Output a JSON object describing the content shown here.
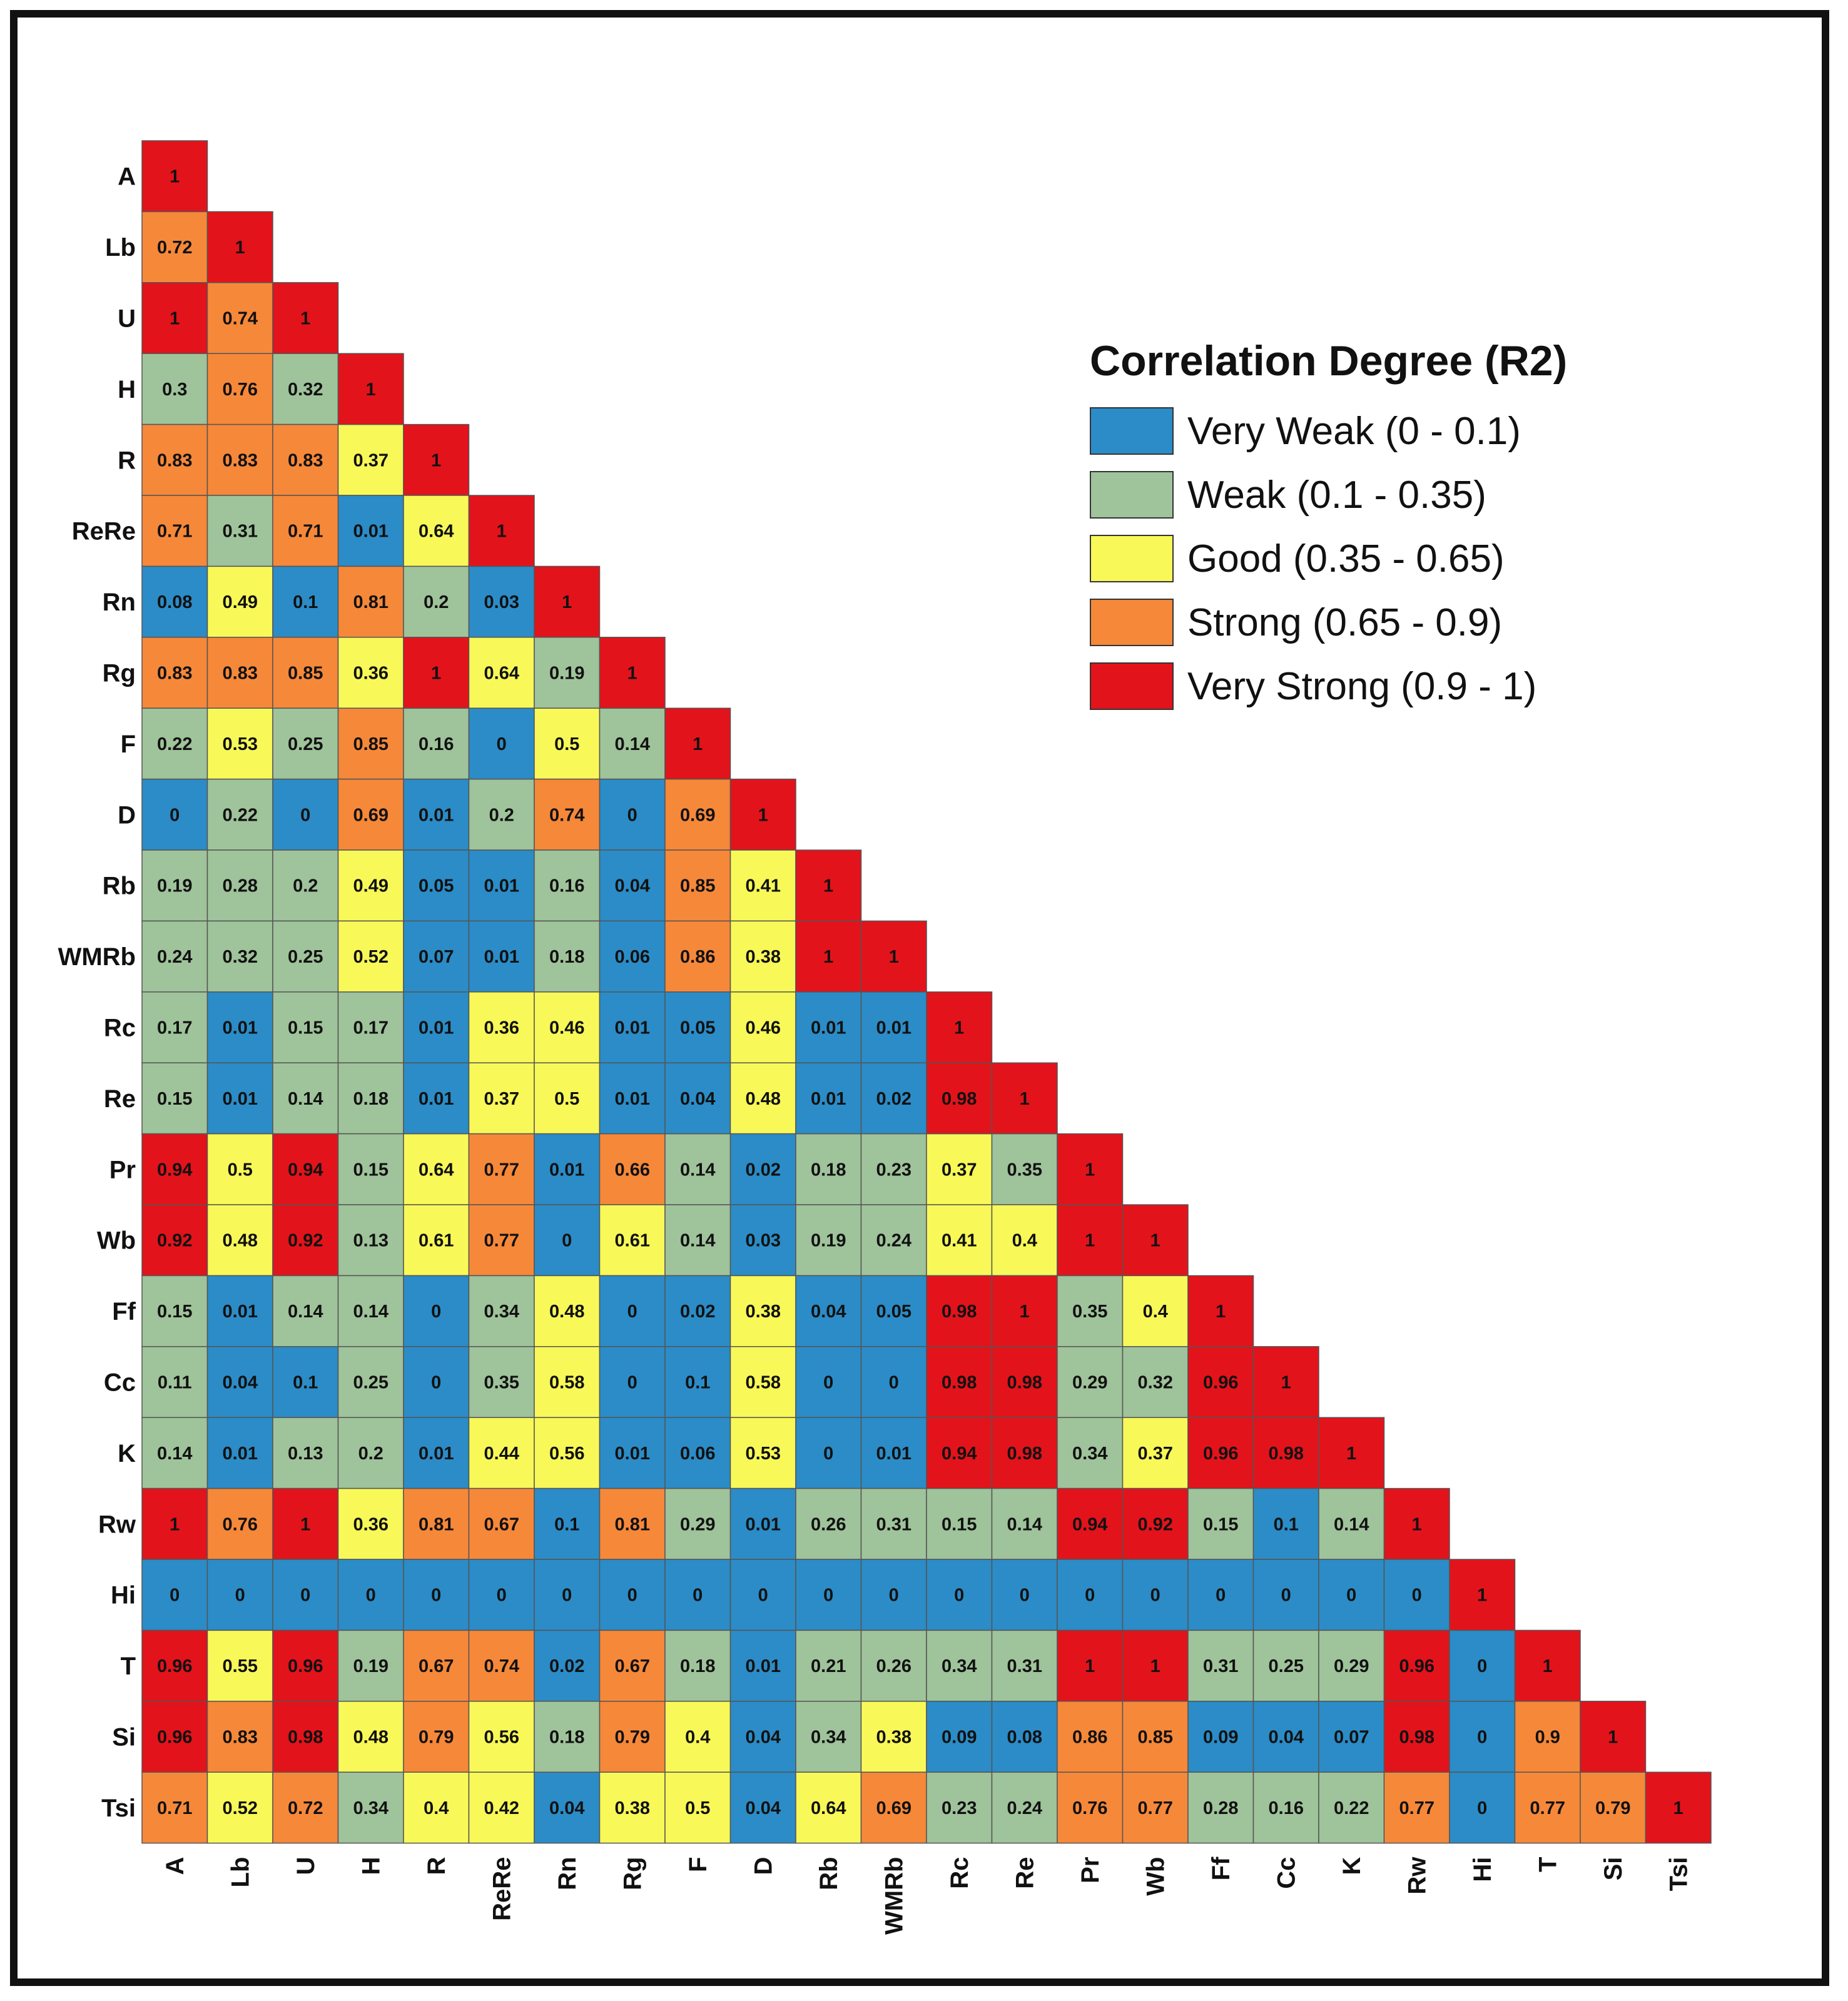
{
  "chart_data": {
    "type": "heatmap",
    "title": "",
    "variables": [
      "A",
      "Lb",
      "U",
      "H",
      "R",
      "ReRe",
      "Rn",
      "Rg",
      "F",
      "D",
      "Rb",
      "WMRb",
      "Rc",
      "Re",
      "Pr",
      "Wb",
      "Ff",
      "Cc",
      "K",
      "Rw",
      "Hi",
      "T",
      "Si",
      "Tsi"
    ],
    "lower_triangle_labels": [
      [
        "1"
      ],
      [
        "0.72",
        "1"
      ],
      [
        "1",
        "0.74",
        "1"
      ],
      [
        "0.3",
        "0.76",
        "0.32",
        "1"
      ],
      [
        "0.83",
        "0.83",
        "0.83",
        "0.37",
        "1"
      ],
      [
        "0.71",
        "0.31",
        "0.71",
        "0.01",
        "0.64",
        "1"
      ],
      [
        "0.08",
        "0.49",
        "0.1",
        "0.81",
        "0.2",
        "0.03",
        "1"
      ],
      [
        "0.83",
        "0.83",
        "0.85",
        "0.36",
        "1",
        "0.64",
        "0.19",
        "1"
      ],
      [
        "0.22",
        "0.53",
        "0.25",
        "0.85",
        "0.16",
        "0",
        "0.5",
        "0.14",
        "1"
      ],
      [
        "0",
        "0.22",
        "0",
        "0.69",
        "0.01",
        "0.2",
        "0.74",
        "0",
        "0.69",
        "1"
      ],
      [
        "0.19",
        "0.28",
        "0.2",
        "0.49",
        "0.05",
        "0.01",
        "0.16",
        "0.04",
        "0.85",
        "0.41",
        "1"
      ],
      [
        "0.24",
        "0.32",
        "0.25",
        "0.52",
        "0.07",
        "0.01",
        "0.18",
        "0.06",
        "0.86",
        "0.38",
        "1",
        "1"
      ],
      [
        "0.17",
        "0.01",
        "0.15",
        "0.17",
        "0.01",
        "0.36",
        "0.46",
        "0.01",
        "0.05",
        "0.46",
        "0.01",
        "0.01",
        "1"
      ],
      [
        "0.15",
        "0.01",
        "0.14",
        "0.18",
        "0.01",
        "0.37",
        "0.5",
        "0.01",
        "0.04",
        "0.48",
        "0.01",
        "0.02",
        "0.98",
        "1"
      ],
      [
        "0.94",
        "0.5",
        "0.94",
        "0.15",
        "0.64",
        "0.77",
        "0.01",
        "0.66",
        "0.14",
        "0.02",
        "0.18",
        "0.23",
        "0.37",
        "0.35",
        "1"
      ],
      [
        "0.92",
        "0.48",
        "0.92",
        "0.13",
        "0.61",
        "0.77",
        "0",
        "0.61",
        "0.14",
        "0.03",
        "0.19",
        "0.24",
        "0.41",
        "0.4",
        "1",
        "1"
      ],
      [
        "0.15",
        "0.01",
        "0.14",
        "0.14",
        "0",
        "0.34",
        "0.48",
        "0",
        "0.02",
        "0.38",
        "0.04",
        "0.05",
        "0.98",
        "1",
        "0.35",
        "0.4",
        "1"
      ],
      [
        "0.11",
        "0.04",
        "0.1",
        "0.25",
        "0",
        "0.35",
        "0.58",
        "0",
        "0.1",
        "0.58",
        "0",
        "0",
        "0.98",
        "0.98",
        "0.29",
        "0.32",
        "0.96",
        "1"
      ],
      [
        "0.14",
        "0.01",
        "0.13",
        "0.2",
        "0.01",
        "0.44",
        "0.56",
        "0.01",
        "0.06",
        "0.53",
        "0",
        "0.01",
        "0.94",
        "0.98",
        "0.34",
        "0.37",
        "0.96",
        "0.98",
        "1"
      ],
      [
        "1",
        "0.76",
        "1",
        "0.36",
        "0.81",
        "0.67",
        "0.1",
        "0.81",
        "0.29",
        "0.01",
        "0.26",
        "0.31",
        "0.15",
        "0.14",
        "0.94",
        "0.92",
        "0.15",
        "0.1",
        "0.14",
        "1"
      ],
      [
        "0",
        "0",
        "0",
        "0",
        "0",
        "0",
        "0",
        "0",
        "0",
        "0",
        "0",
        "0",
        "0",
        "0",
        "0",
        "0",
        "0",
        "0",
        "0",
        "0",
        "1"
      ],
      [
        "0.96",
        "0.55",
        "0.96",
        "0.19",
        "0.67",
        "0.74",
        "0.02",
        "0.67",
        "0.18",
        "0.01",
        "0.21",
        "0.26",
        "0.34",
        "0.31",
        "1",
        "1",
        "0.31",
        "0.25",
        "0.29",
        "0.96",
        "0",
        "1"
      ],
      [
        "0.96",
        "0.83",
        "0.98",
        "0.48",
        "0.79",
        "0.56",
        "0.18",
        "0.79",
        "0.4",
        "0.04",
        "0.34",
        "0.38",
        "0.09",
        "0.08",
        "0.86",
        "0.85",
        "0.09",
        "0.04",
        "0.07",
        "0.98",
        "0",
        "0.9",
        "1"
      ],
      [
        "0.71",
        "0.52",
        "0.72",
        "0.34",
        "0.4",
        "0.42",
        "0.04",
        "0.38",
        "0.5",
        "0.04",
        "0.64",
        "0.69",
        "0.23",
        "0.24",
        "0.76",
        "0.77",
        "0.28",
        "0.16",
        "0.22",
        "0.77",
        "0",
        "0.77",
        "0.79",
        "1"
      ]
    ]
  },
  "legend": {
    "title": "Correlation Degree (R2)",
    "items": [
      {
        "label": "Very Weak (0 - 0.1)",
        "color": "#2b8cc7",
        "min": 0,
        "max": 0.1
      },
      {
        "label": "Weak (0.1 - 0.35)",
        "color": "#9fc39a",
        "min": 0.1,
        "max": 0.35
      },
      {
        "label": "Good (0.35 - 0.65)",
        "color": "#f8f858",
        "min": 0.35,
        "max": 0.65
      },
      {
        "label": "Strong (0.65 - 0.9)",
        "color": "#f6883a",
        "min": 0.65,
        "max": 0.9
      },
      {
        "label": "Very Strong (0.9 - 1)",
        "color": "#e3131b",
        "min": 0.9,
        "max": 1
      }
    ]
  }
}
